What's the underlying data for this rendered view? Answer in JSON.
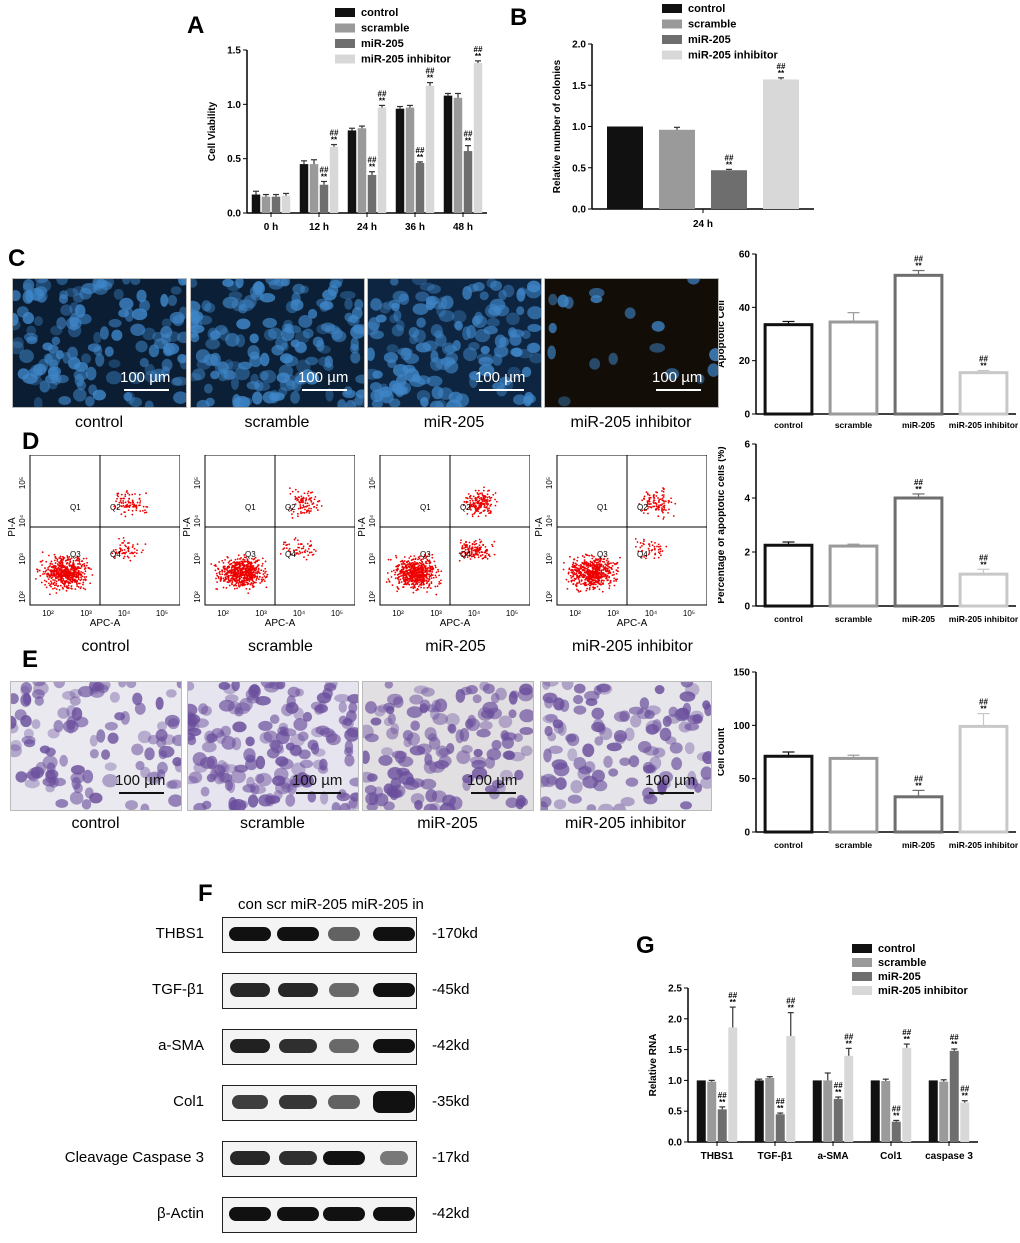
{
  "panels": {
    "A": "A",
    "B": "B",
    "C": "C",
    "D": "D",
    "E": "E",
    "F": "F",
    "G": "G"
  },
  "colors": {
    "control": "#111111",
    "scramble": "#9a9a9a",
    "miR205": "#6e6e6e",
    "inhibitor": "#d8d8d8"
  },
  "chart_data": [
    {
      "id": "A",
      "type": "bar",
      "categories": [
        "0 h",
        "12 h",
        "24 h",
        "36 h",
        "48 h"
      ],
      "series": [
        {
          "name": "control",
          "values": [
            0.17,
            0.45,
            0.76,
            0.96,
            1.08
          ],
          "errors": [
            0.03,
            0.03,
            0.02,
            0.02,
            0.02
          ]
        },
        {
          "name": "scramble",
          "values": [
            0.15,
            0.45,
            0.78,
            0.97,
            1.06
          ],
          "errors": [
            0.02,
            0.04,
            0.02,
            0.02,
            0.04
          ]
        },
        {
          "name": "miR-205",
          "values": [
            0.15,
            0.26,
            0.35,
            0.46,
            0.57
          ],
          "errors": [
            0.02,
            0.03,
            0.03,
            0.01,
            0.05
          ],
          "marks": [
            "",
            "##\n**",
            "##\n**",
            "##\n**",
            "##\n**"
          ]
        },
        {
          "name": "miR-205 inhibitor",
          "values": [
            0.16,
            0.61,
            0.97,
            1.17,
            1.38
          ],
          "errors": [
            0.02,
            0.02,
            0.02,
            0.03,
            0.02
          ],
          "marks": [
            "",
            "##\n**",
            "##\n**",
            "##\n**",
            "##\n**"
          ]
        }
      ],
      "ylabel": "Cell Viability",
      "ylim": [
        0,
        1.5
      ],
      "yticks": [
        "0.0",
        "0.5",
        "1.0",
        "1.5"
      ],
      "legend": "top-right",
      "grid": false
    },
    {
      "id": "B",
      "type": "bar",
      "categories": [
        "24 h"
      ],
      "series": [
        {
          "name": "control",
          "values": [
            1.0
          ],
          "errors": [
            0.0
          ]
        },
        {
          "name": "scramble",
          "values": [
            0.96
          ],
          "errors": [
            0.03
          ]
        },
        {
          "name": "miR-205",
          "values": [
            0.47
          ],
          "errors": [
            0.01
          ],
          "marks": [
            "##\n**"
          ]
        },
        {
          "name": "miR-205 inhibitor",
          "values": [
            1.57
          ],
          "errors": [
            0.02
          ],
          "marks": [
            "##\n**"
          ]
        }
      ],
      "ylabel": "Relative number of colonies",
      "ylim": [
        0,
        2.0
      ],
      "yticks": [
        "0.0",
        "0.5",
        "1.0",
        "1.5",
        "2.0"
      ],
      "legend": "top-right",
      "grid": false
    },
    {
      "id": "C",
      "type": "bar",
      "categories": [
        "control",
        "scramble",
        "miR-205",
        "miR-205 inhibitor"
      ],
      "values": [
        33.5,
        34.5,
        52,
        15.5
      ],
      "errors": [
        1.2,
        3.5,
        1.8,
        0.8
      ],
      "marks": [
        "",
        "",
        "##\n**",
        "##\n**"
      ],
      "ylabel": "Apoptotic Cell",
      "ylim": [
        0,
        60
      ],
      "yticks": [
        "0",
        "20",
        "40",
        "60"
      ],
      "style": "outline"
    },
    {
      "id": "D",
      "type": "bar",
      "categories": [
        "control",
        "scramble",
        "miR-205",
        "miR-205 inhibitor"
      ],
      "values": [
        2.25,
        2.22,
        4.0,
        1.18
      ],
      "errors": [
        0.12,
        0.07,
        0.15,
        0.18
      ],
      "marks": [
        "",
        "",
        "##\n**",
        "##\n**"
      ],
      "ylabel": "Percentage of apoptotic cells (%)",
      "ylim": [
        0,
        6
      ],
      "yticks": [
        "0",
        "2",
        "4",
        "6"
      ],
      "style": "outline"
    },
    {
      "id": "E",
      "type": "bar",
      "categories": [
        "control",
        "scramble",
        "miR-205",
        "miR-205 inhibitor"
      ],
      "values": [
        71,
        69,
        33,
        99
      ],
      "errors": [
        4,
        3,
        6,
        12
      ],
      "marks": [
        "",
        "",
        "##\n**",
        "##\n**"
      ],
      "ylabel": "Cell count",
      "ylim": [
        0,
        150
      ],
      "yticks": [
        "0",
        "50",
        "100",
        "150"
      ],
      "style": "outline"
    },
    {
      "id": "G",
      "type": "bar",
      "categories": [
        "THBS1",
        "TGF-β1",
        "a-SMA",
        "Col1",
        "caspase 3"
      ],
      "series": [
        {
          "name": "control",
          "values": [
            1.0,
            1.0,
            1.0,
            1.0,
            1.0
          ],
          "errors": [
            0.0,
            0.02,
            0.0,
            0.0,
            0.0
          ]
        },
        {
          "name": "scramble",
          "values": [
            0.98,
            1.04,
            1.0,
            0.99,
            0.98
          ],
          "errors": [
            0.02,
            0.02,
            0.12,
            0.03,
            0.03
          ]
        },
        {
          "name": "miR-205",
          "values": [
            0.53,
            0.45,
            0.7,
            0.33,
            1.48
          ],
          "errors": [
            0.04,
            0.02,
            0.03,
            0.02,
            0.03
          ],
          "marks": [
            "##\n**",
            "##\n**",
            "##\n**",
            "##\n**",
            "##\n**"
          ]
        },
        {
          "name": "miR-205 inhibitor",
          "values": [
            1.86,
            1.72,
            1.4,
            1.53,
            0.64
          ],
          "errors": [
            0.33,
            0.38,
            0.12,
            0.06,
            0.03
          ],
          "marks": [
            "##\n**",
            "##\n**",
            "##\n**",
            "##\n**",
            "##\n**"
          ]
        }
      ],
      "ylabel": "Relative RNA",
      "ylim": [
        0,
        2.5
      ],
      "yticks": [
        "0.0",
        "0.5",
        "1.0",
        "1.5",
        "2.0",
        "2.5"
      ],
      "legend": "top-right",
      "grid": false
    }
  ],
  "micrographs": {
    "scale": "100 µm",
    "C": [
      "control",
      "scramble",
      "miR-205",
      "miR-205 inhibitor"
    ],
    "E": [
      "control",
      "scramble",
      "miR-205",
      "miR-205 inhibitor"
    ]
  },
  "flow": {
    "captions": [
      "control",
      "scramble",
      "miR-205",
      "miR-205 inhibitor"
    ],
    "xlabel": "APC-A",
    "ylabel": "PI-A",
    "quadrants": [
      "Q1",
      "Q2",
      "Q3",
      "Q4"
    ],
    "xticks": [
      "10²",
      "10³",
      "10⁴",
      "10⁵"
    ],
    "yticks": [
      "10²",
      "10³",
      "10⁴",
      "10⁵"
    ]
  },
  "western": {
    "header": "con scr miR-205 miR-205 in",
    "rows": [
      {
        "name": "THBS1",
        "kd": "-170kd",
        "levels": [
          1.0,
          1.0,
          0.45,
          1.0
        ]
      },
      {
        "name": "TGF-β1",
        "kd": "-45kd",
        "levels": [
          0.85,
          0.85,
          0.4,
          1.0
        ]
      },
      {
        "name": "a-SMA",
        "kd": "-42kd",
        "levels": [
          0.9,
          0.8,
          0.4,
          1.0
        ]
      },
      {
        "name": "Col1",
        "kd": "-35kd",
        "levels": [
          0.7,
          0.75,
          0.45,
          1.0
        ]
      },
      {
        "name": "Cleavage Caspase 3",
        "kd": "-17kd",
        "levels": [
          0.85,
          0.8,
          1.0,
          0.3
        ]
      },
      {
        "name": "β-Actin",
        "kd": "-42kd",
        "levels": [
          1.0,
          1.0,
          1.0,
          1.0
        ]
      }
    ]
  }
}
